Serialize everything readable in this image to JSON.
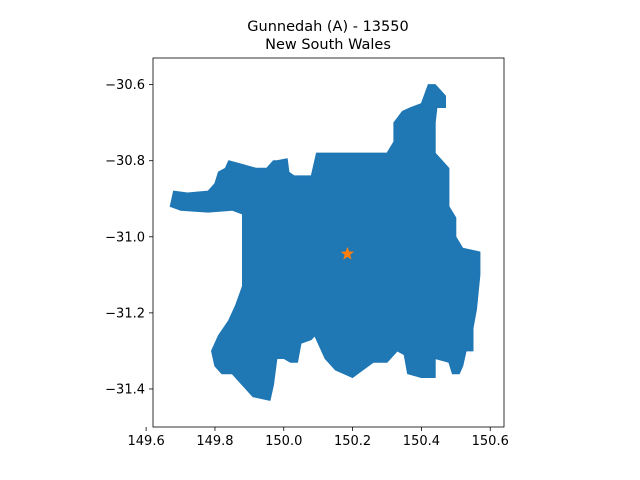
{
  "title_line1": "Gunnedah (A) - 13550",
  "title_line2": "New South Wales",
  "colors": {
    "region_fill": "#1f77b4",
    "marker": "#ff7f0e",
    "axes": "#000000",
    "background": "#ffffff"
  },
  "chart_data": {
    "type": "map",
    "title": "Gunnedah (A) - 13550\nNew South Wales",
    "xlabel": "",
    "ylabel": "",
    "xlim": [
      149.62,
      150.64
    ],
    "ylim": [
      -31.5,
      -30.53
    ],
    "x_ticks": [
      149.6,
      149.8,
      150.0,
      150.2,
      150.4,
      150.6
    ],
    "x_tick_labels": [
      "149.6",
      "149.8",
      "150.0",
      "150.2",
      "150.4",
      "150.6"
    ],
    "y_ticks": [
      -30.6,
      -30.8,
      -31.0,
      -31.2,
      -31.4
    ],
    "y_tick_labels": [
      "−30.6",
      "−30.8",
      "−31.0",
      "−31.2",
      "−31.4"
    ],
    "grid": false,
    "region": {
      "name": "Gunnedah (A) - 13550",
      "fill": "#1f77b4",
      "outline": [
        [
          149.67,
          -30.92
        ],
        [
          149.675,
          -30.9
        ],
        [
          149.68,
          -30.88
        ],
        [
          149.72,
          -30.885
        ],
        [
          149.78,
          -30.88
        ],
        [
          149.79,
          -30.87
        ],
        [
          149.8,
          -30.86
        ],
        [
          149.81,
          -30.83
        ],
        [
          149.83,
          -30.82
        ],
        [
          149.84,
          -30.8
        ],
        [
          149.88,
          -30.81
        ],
        [
          149.92,
          -30.82
        ],
        [
          149.95,
          -30.82
        ],
        [
          149.97,
          -30.8
        ],
        [
          149.98,
          -30.8
        ],
        [
          150.01,
          -30.795
        ],
        [
          150.015,
          -30.83
        ],
        [
          150.03,
          -30.84
        ],
        [
          150.08,
          -30.84
        ],
        [
          150.095,
          -30.78
        ],
        [
          150.2,
          -30.78
        ],
        [
          150.3,
          -30.78
        ],
        [
          150.32,
          -30.75
        ],
        [
          150.32,
          -30.7
        ],
        [
          150.345,
          -30.67
        ],
        [
          150.37,
          -30.66
        ],
        [
          150.4,
          -30.65
        ],
        [
          150.42,
          -30.6
        ],
        [
          150.44,
          -30.6
        ],
        [
          150.47,
          -30.63
        ],
        [
          150.47,
          -30.66
        ],
        [
          150.445,
          -30.66
        ],
        [
          150.44,
          -30.7
        ],
        [
          150.44,
          -30.78
        ],
        [
          150.46,
          -30.8
        ],
        [
          150.48,
          -30.82
        ],
        [
          150.48,
          -30.86
        ],
        [
          150.48,
          -30.92
        ],
        [
          150.5,
          -30.95
        ],
        [
          150.5,
          -31.0
        ],
        [
          150.52,
          -31.03
        ],
        [
          150.57,
          -31.04
        ],
        [
          150.57,
          -31.1
        ],
        [
          150.56,
          -31.19
        ],
        [
          150.55,
          -31.24
        ],
        [
          150.55,
          -31.3
        ],
        [
          150.53,
          -31.3
        ],
        [
          150.52,
          -31.34
        ],
        [
          150.51,
          -31.36
        ],
        [
          150.49,
          -31.36
        ],
        [
          150.48,
          -31.33
        ],
        [
          150.44,
          -31.32
        ],
        [
          150.44,
          -31.37
        ],
        [
          150.4,
          -31.37
        ],
        [
          150.36,
          -31.36
        ],
        [
          150.35,
          -31.31
        ],
        [
          150.33,
          -31.3
        ],
        [
          150.3,
          -31.33
        ],
        [
          150.26,
          -31.33
        ],
        [
          150.23,
          -31.35
        ],
        [
          150.2,
          -31.37
        ],
        [
          150.15,
          -31.35
        ],
        [
          150.12,
          -31.32
        ],
        [
          150.1,
          -31.28
        ],
        [
          150.09,
          -31.26
        ],
        [
          150.08,
          -31.27
        ],
        [
          150.05,
          -31.28
        ],
        [
          150.04,
          -31.33
        ],
        [
          150.02,
          -31.33
        ],
        [
          150.0,
          -31.32
        ],
        [
          149.98,
          -31.32
        ],
        [
          149.97,
          -31.39
        ],
        [
          149.96,
          -31.43
        ],
        [
          149.91,
          -31.42
        ],
        [
          149.88,
          -31.39
        ],
        [
          149.85,
          -31.36
        ],
        [
          149.82,
          -31.36
        ],
        [
          149.8,
          -31.34
        ],
        [
          149.79,
          -31.3
        ],
        [
          149.81,
          -31.26
        ],
        [
          149.84,
          -31.22
        ],
        [
          149.86,
          -31.18
        ],
        [
          149.88,
          -31.13
        ],
        [
          149.88,
          -31.08
        ],
        [
          149.88,
          -31.03
        ],
        [
          149.88,
          -30.98
        ],
        [
          149.88,
          -30.94
        ],
        [
          149.85,
          -30.93
        ],
        [
          149.78,
          -30.935
        ],
        [
          149.7,
          -30.93
        ],
        [
          149.67,
          -30.92
        ]
      ]
    },
    "points": [
      {
        "x": 150.185,
        "y": -31.045,
        "marker": "star",
        "color": "#ff7f0e"
      }
    ]
  }
}
